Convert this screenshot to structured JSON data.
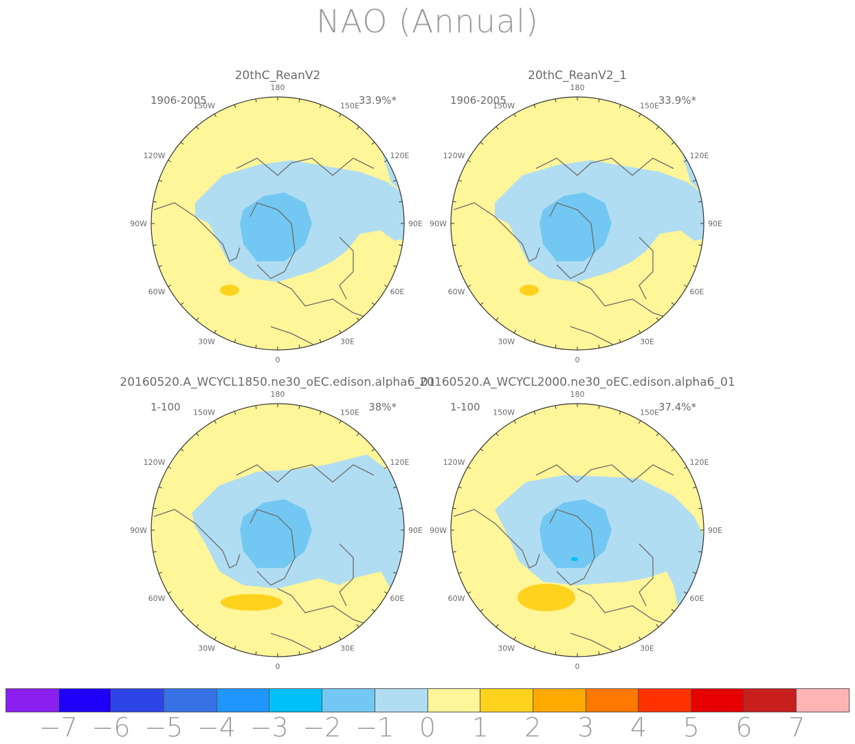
{
  "title": "NAO (Annual)",
  "panels": [
    {
      "name": "20thC_ReanV2",
      "years": "1906-2005",
      "pct": "33.9%*",
      "variant": 0
    },
    {
      "name": "20thC_ReanV2_1",
      "years": "1906-2005",
      "pct": "33.9%*",
      "variant": 0
    },
    {
      "name": "20160520.A_WCYCL1850.ne30_oEC.edison.alpha6_01",
      "years": "1-100",
      "pct": "38%*",
      "variant": 1
    },
    {
      "name": "20160520.A_WCYCL2000.ne30_oEC.edison.alpha6_01",
      "years": "1-100",
      "pct": "37.4%*",
      "variant": 2
    }
  ],
  "longitude_labels": [
    "180",
    "150E",
    "120E",
    "90E",
    "60E",
    "30E",
    "0",
    "30W",
    "60W",
    "90W",
    "120W",
    "150W"
  ],
  "colorbar": {
    "labels": [
      "−7",
      "−6",
      "−5",
      "−4",
      "−3",
      "−2",
      "−1",
      "0",
      "1",
      "2",
      "3",
      "4",
      "5",
      "6",
      "7"
    ],
    "colors": [
      "#8b1ff0",
      "#1e00fa",
      "#2d45e8",
      "#3672e6",
      "#1e96fc",
      "#00c0fa",
      "#72c8f2",
      "#b0ddf2",
      "#fff599",
      "#ffd21e",
      "#ffaa00",
      "#ff7800",
      "#ff3200",
      "#e60000",
      "#c81e1e",
      "#ffb4b4"
    ]
  },
  "legend_colors": {
    "zero_to_one": "#fff599",
    "one_to_two": "#ffd21e",
    "neg_one_to_zero": "#b0ddf2",
    "neg_two_to_neg_one": "#72c8f2",
    "neg_three_to_neg_two": "#00c0fa"
  }
}
